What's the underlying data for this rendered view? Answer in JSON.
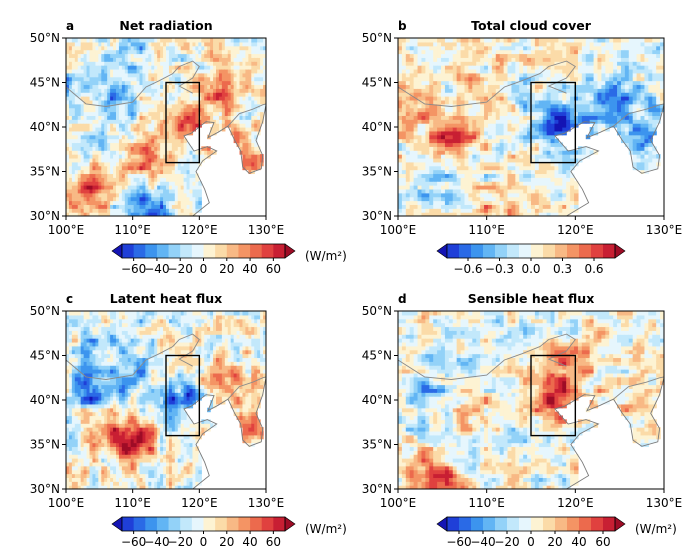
{
  "colormap": {
    "name": "blue-white-red diverging",
    "colors": [
      "#1414b4",
      "#1f3fd8",
      "#2a6ae6",
      "#3c94ee",
      "#62b5f4",
      "#93d2f8",
      "#c2e8fb",
      "#e6f6fd",
      "#fdf3d3",
      "#fbdba8",
      "#f8b985",
      "#f49464",
      "#ec6a4d",
      "#e0413f",
      "#c81f33",
      "#9e0c26"
    ]
  },
  "chart_data": [
    {
      "type": "heatmap",
      "panel_letter": "a",
      "title": "Net radiation",
      "x_ticks": [
        "100°E",
        "110°E",
        "120°E",
        "130°E"
      ],
      "y_ticks": [
        "30°N",
        "35°N",
        "40°N",
        "45°N",
        "50°N"
      ],
      "xlim": [
        100,
        130
      ],
      "ylim": [
        30,
        50
      ],
      "box": {
        "lon": [
          115,
          120
        ],
        "lat": [
          36,
          45
        ]
      },
      "colorbar": {
        "ticks": [
          "−60",
          "−40",
          "−20",
          "0",
          "20",
          "40",
          "60"
        ],
        "range": [
          -70,
          70
        ],
        "unit": "(W/m²)",
        "extend": "both"
      },
      "pattern": [
        {
          "lon": 104,
          "lat": 33,
          "value": 45
        },
        {
          "lon": 112,
          "lat": 36,
          "value": 35
        },
        {
          "lon": 119,
          "lat": 40,
          "value": 40
        },
        {
          "lon": 123,
          "lat": 44,
          "value": 35
        },
        {
          "lon": 126,
          "lat": 37,
          "value": 45
        },
        {
          "lon": 112,
          "lat": 31,
          "value": -55
        },
        {
          "lon": 107,
          "lat": 43,
          "value": -30
        },
        {
          "lon": 101,
          "lat": 45,
          "value": -25
        },
        {
          "lon": 110,
          "lat": 48,
          "value": -20
        },
        {
          "lon": 128,
          "lat": 33,
          "value": 10
        }
      ]
    },
    {
      "type": "heatmap",
      "panel_letter": "b",
      "title": "Total cloud cover",
      "x_ticks": [
        "100°E",
        "110°E",
        "120°E",
        "130°E"
      ],
      "y_ticks": [
        "30°N",
        "35°N",
        "40°N",
        "45°N",
        "50°N"
      ],
      "xlim": [
        100,
        130
      ],
      "ylim": [
        30,
        50
      ],
      "box": {
        "lon": [
          115,
          120
        ],
        "lat": [
          36,
          45
        ]
      },
      "colorbar": {
        "ticks": [
          "−0.6",
          "−0.3",
          "0.0",
          "0.3",
          "0.6"
        ],
        "range": [
          -0.8,
          0.8
        ],
        "unit": "",
        "extend": "both"
      },
      "pattern": [
        {
          "lon": 118,
          "lat": 40,
          "value": -0.6
        },
        {
          "lon": 124,
          "lat": 43,
          "value": -0.5
        },
        {
          "lon": 127,
          "lat": 39,
          "value": -0.4
        },
        {
          "lon": 106,
          "lat": 39.5,
          "value": 0.6
        },
        {
          "lon": 102,
          "lat": 43,
          "value": 0.25
        },
        {
          "lon": 103,
          "lat": 33,
          "value": -0.25
        },
        {
          "lon": 110,
          "lat": 48,
          "value": 0.2
        },
        {
          "lon": 125,
          "lat": 33,
          "value": 0.15
        },
        {
          "lon": 112,
          "lat": 31,
          "value": 0.2
        }
      ]
    },
    {
      "type": "heatmap",
      "panel_letter": "c",
      "title": "Latent heat flux",
      "x_ticks": [
        "100°E",
        "110°E",
        "120°E",
        "130°E"
      ],
      "y_ticks": [
        "30°N",
        "35°N",
        "40°N",
        "45°N",
        "50°N"
      ],
      "xlim": [
        100,
        130
      ],
      "ylim": [
        30,
        50
      ],
      "box": {
        "lon": [
          115,
          120
        ],
        "lat": [
          36,
          45
        ]
      },
      "colorbar": {
        "ticks": [
          "−60",
          "−40",
          "−20",
          "0",
          "20",
          "40",
          "60"
        ],
        "range": [
          -70,
          70
        ],
        "unit": "(W/m²)",
        "extend": "both"
      },
      "pattern": [
        {
          "lon": 110,
          "lat": 35,
          "value": 60
        },
        {
          "lon": 106,
          "lat": 37,
          "value": 25
        },
        {
          "lon": 104,
          "lat": 41,
          "value": -45
        },
        {
          "lon": 110,
          "lat": 43,
          "value": -35
        },
        {
          "lon": 117,
          "lat": 40,
          "value": -45
        },
        {
          "lon": 104,
          "lat": 47,
          "value": -20
        },
        {
          "lon": 125,
          "lat": 42,
          "value": 25
        },
        {
          "lon": 127,
          "lat": 37,
          "value": 25
        },
        {
          "lon": 101,
          "lat": 31,
          "value": 15
        }
      ]
    },
    {
      "type": "heatmap",
      "panel_letter": "d",
      "title": "Sensible heat flux",
      "x_ticks": [
        "100°E",
        "110°E",
        "120°E",
        "130°E"
      ],
      "y_ticks": [
        "30°N",
        "35°N",
        "40°N",
        "45°N",
        "50°N"
      ],
      "xlim": [
        100,
        130
      ],
      "ylim": [
        30,
        50
      ],
      "box": {
        "lon": [
          115,
          120
        ],
        "lat": [
          36,
          45
        ]
      },
      "colorbar": {
        "ticks": [
          "−60",
          "−40",
          "−20",
          "0",
          "20",
          "40",
          "60"
        ],
        "range": [
          -70,
          70
        ],
        "unit": "(W/m²)",
        "extend": "both"
      },
      "pattern": [
        {
          "lon": 117.5,
          "lat": 40,
          "value": 50
        },
        {
          "lon": 119,
          "lat": 44,
          "value": 35
        },
        {
          "lon": 110,
          "lat": 38,
          "value": 25
        },
        {
          "lon": 104,
          "lat": 31,
          "value": 45
        },
        {
          "lon": 103,
          "lat": 41,
          "value": -25
        },
        {
          "lon": 110,
          "lat": 45,
          "value": -15
        },
        {
          "lon": 127,
          "lat": 40,
          "value": 20
        },
        {
          "lon": 113,
          "lat": 36,
          "value": -20
        },
        {
          "lon": 124,
          "lat": 47,
          "value": 10
        }
      ]
    }
  ]
}
